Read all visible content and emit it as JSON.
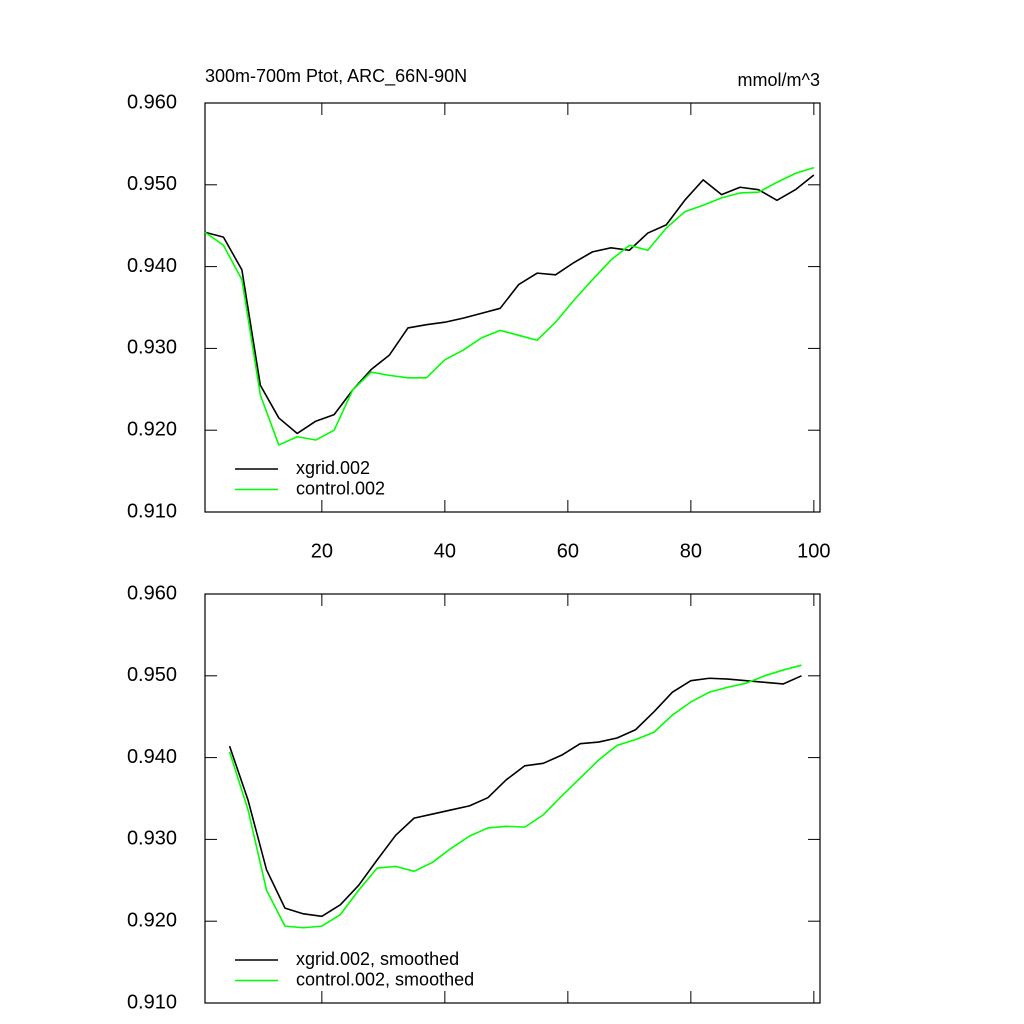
{
  "chart_data": [
    {
      "type": "line",
      "title": "300m-700m Ptot, ARC_66N-90N",
      "units": "mmol/m^3",
      "x": [
        1,
        4,
        7,
        10,
        13,
        16,
        19,
        22,
        25,
        28,
        31,
        34,
        37,
        40,
        43,
        46,
        49,
        52,
        55,
        58,
        61,
        64,
        67,
        70,
        73,
        76,
        79,
        82,
        85,
        88,
        91,
        94,
        97,
        100
      ],
      "series": [
        {
          "name": "xgrid.002",
          "color": "#000000",
          "values": [
            0.9442,
            0.9436,
            0.9396,
            0.9255,
            0.9215,
            0.9196,
            0.9211,
            0.9219,
            0.9249,
            0.9274,
            0.9292,
            0.9325,
            0.9329,
            0.9332,
            0.9337,
            0.9343,
            0.9349,
            0.9378,
            0.9392,
            0.939,
            0.9405,
            0.9418,
            0.9423,
            0.942,
            0.9441,
            0.9451,
            0.9481,
            0.9506,
            0.9488,
            0.9497,
            0.9494,
            0.9481,
            0.9494,
            0.9512
          ]
        },
        {
          "name": "control.002",
          "color": "#00ff00",
          "values": [
            0.9442,
            0.9426,
            0.9384,
            0.9243,
            0.9182,
            0.9192,
            0.9188,
            0.92,
            0.9249,
            0.9271,
            0.9267,
            0.9264,
            0.9264,
            0.9286,
            0.9298,
            0.9313,
            0.9322,
            0.9316,
            0.931,
            0.9332,
            0.9359,
            0.9384,
            0.9408,
            0.9426,
            0.942,
            0.9447,
            0.9467,
            0.9475,
            0.9484,
            0.949,
            0.9491,
            0.9503,
            0.9514,
            0.9521
          ]
        }
      ],
      "xlim": [
        1,
        101
      ],
      "xticks": [
        20,
        40,
        60,
        80,
        100
      ],
      "xtick_labels": true,
      "ylim": [
        0.91,
        0.96
      ],
      "yticks": [
        {
          "value": 0.91,
          "label": "0.910"
        },
        {
          "value": 0.92,
          "label": "0.920"
        },
        {
          "value": 0.93,
          "label": "0.930"
        },
        {
          "value": 0.94,
          "label": "0.940"
        },
        {
          "value": 0.95,
          "label": "0.950"
        },
        {
          "value": 0.96,
          "label": "0.960"
        }
      ],
      "legend": "lower left"
    },
    {
      "type": "line",
      "x": [
        5,
        8,
        11,
        14,
        17,
        20,
        23,
        26,
        29,
        32,
        35,
        38,
        41,
        44,
        47,
        50,
        53,
        56,
        59,
        62,
        65,
        68,
        71,
        74,
        77,
        80,
        83,
        86,
        89,
        92,
        95,
        98
      ],
      "series": [
        {
          "name": "xgrid.002, smoothed",
          "color": "#000000",
          "values": [
            0.9414,
            0.9348,
            0.9263,
            0.9216,
            0.9209,
            0.9206,
            0.922,
            0.9244,
            0.9275,
            0.9305,
            0.9326,
            0.9331,
            0.9336,
            0.9341,
            0.9351,
            0.9373,
            0.939,
            0.9393,
            0.9403,
            0.9417,
            0.9419,
            0.9424,
            0.9434,
            0.9456,
            0.948,
            0.9494,
            0.9497,
            0.9496,
            0.9494,
            0.9492,
            0.949,
            0.95
          ]
        },
        {
          "name": "control.002, smoothed",
          "color": "#00ff00",
          "values": [
            0.9407,
            0.9336,
            0.9238,
            0.9194,
            0.9192,
            0.9194,
            0.9208,
            0.9238,
            0.9265,
            0.9267,
            0.9261,
            0.9272,
            0.9289,
            0.9304,
            0.9314,
            0.9316,
            0.9315,
            0.933,
            0.9353,
            0.9375,
            0.9397,
            0.9415,
            0.9422,
            0.9431,
            0.9452,
            0.9468,
            0.948,
            0.9486,
            0.9491,
            0.95,
            0.9507,
            0.9513
          ]
        }
      ],
      "xlim": [
        1,
        101
      ],
      "xticks": [
        20,
        40,
        60,
        80,
        100
      ],
      "xtick_labels": false,
      "ylim": [
        0.91,
        0.96
      ],
      "yticks": [
        {
          "value": 0.91,
          "label": "0.910"
        },
        {
          "value": 0.92,
          "label": "0.920"
        },
        {
          "value": 0.93,
          "label": "0.930"
        },
        {
          "value": 0.94,
          "label": "0.940"
        },
        {
          "value": 0.95,
          "label": "0.950"
        },
        {
          "value": 0.96,
          "label": "0.960"
        }
      ],
      "legend": "lower left"
    }
  ]
}
